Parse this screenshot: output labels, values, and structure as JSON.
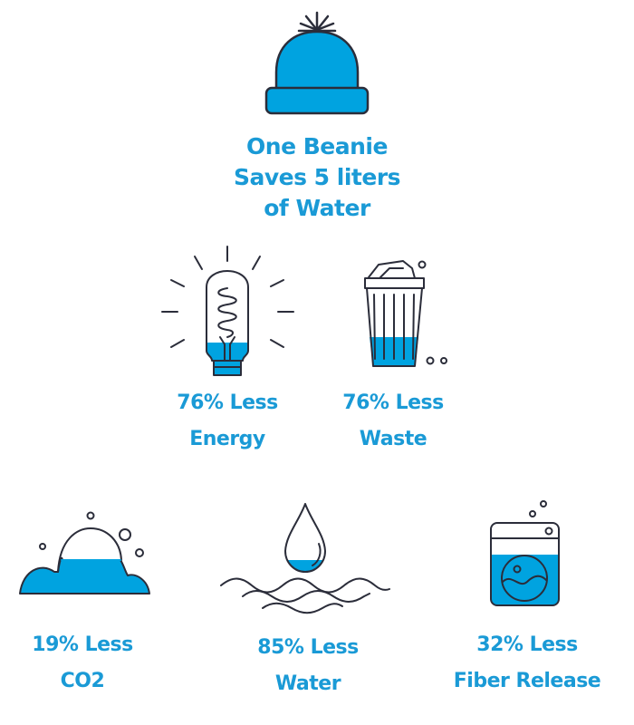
{
  "colors": {
    "accent": "#00a3e0",
    "text": "#1a9ad6",
    "outline": "#2b2d3a"
  },
  "headline": {
    "icon": "beanie-icon",
    "lines": [
      "One Beanie",
      "Saves 5 liters",
      "of Water"
    ]
  },
  "stats": [
    {
      "icon": "lightbulb-icon",
      "line1": "76% Less",
      "line2": "Energy"
    },
    {
      "icon": "trash-can-icon",
      "line1": "76% Less",
      "line2": "Waste"
    },
    {
      "icon": "cloud-icon",
      "line1": "19% Less",
      "line2": "CO2"
    },
    {
      "icon": "water-drop-icon",
      "line1": "85% Less",
      "line2": "Water"
    },
    {
      "icon": "washing-machine-icon",
      "line1": "32% Less",
      "line2": "Fiber Release"
    }
  ]
}
